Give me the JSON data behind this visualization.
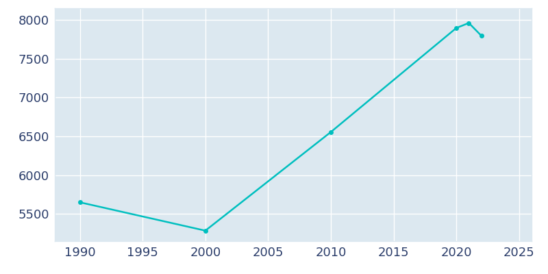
{
  "years": [
    1990,
    2000,
    2010,
    2020,
    2021,
    2022
  ],
  "population": [
    5650,
    5285,
    6555,
    7895,
    7960,
    7795
  ],
  "line_color": "#00BFBF",
  "marker": "o",
  "marker_size": 4,
  "line_width": 1.8,
  "background_color": "#FFFFFF",
  "axes_bg_color": "#DCE8F0",
  "grid_color": "#FFFFFF",
  "tick_color": "#2C3E6B",
  "spine_color": "#FFFFFF",
  "xlim": [
    1988,
    2026
  ],
  "ylim": [
    5150,
    8150
  ],
  "xticks": [
    1990,
    1995,
    2000,
    2005,
    2010,
    2015,
    2020,
    2025
  ],
  "yticks": [
    5500,
    6000,
    6500,
    7000,
    7500,
    8000
  ],
  "tick_fontsize": 13,
  "figsize": [
    8.0,
    4.0
  ],
  "dpi": 100
}
